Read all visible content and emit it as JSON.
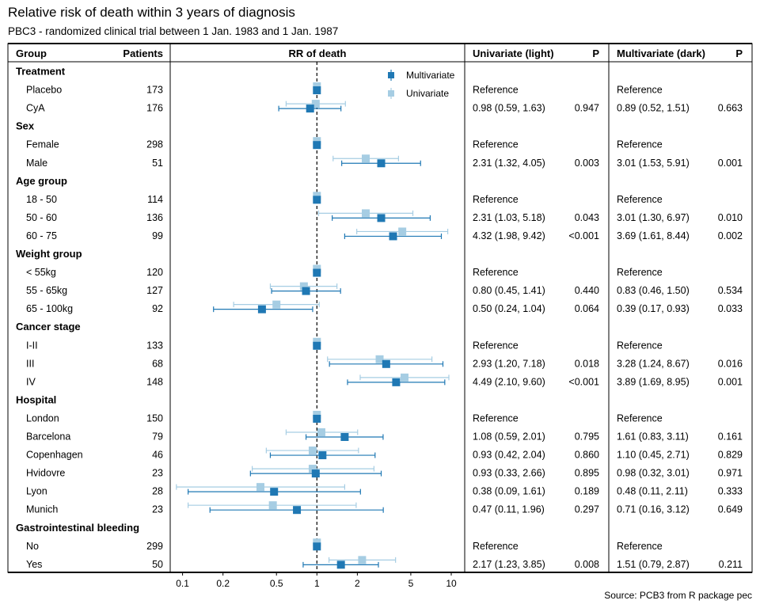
{
  "title": "Relative risk of death within 3 years of diagnosis",
  "subtitle": "PBC3 - randomized clinical trial between 1 Jan. 1983 and 1 Jan. 1987",
  "source": "Source: PCB3 from R package pec",
  "headers": {
    "group": "Group",
    "patients": "Patients",
    "rr": "RR of death",
    "uni": "Univariate (light)",
    "uni_p": "P",
    "multi": "Multivariate (dark)",
    "multi_p": "P"
  },
  "colors": {
    "univariate": "#a6cde3",
    "multivariate": "#1f78b4"
  },
  "chart_data": {
    "type": "forest",
    "x_scale": "log",
    "x_ticks": [
      0.1,
      0.2,
      0.5,
      1,
      2,
      5,
      10
    ],
    "x_tick_labels": [
      "0.1",
      "0.2",
      "0.5",
      "1",
      "2",
      "5",
      "10"
    ],
    "xlim": [
      0.08,
      12
    ],
    "reference_line": 1,
    "legend": {
      "position": "top-right",
      "entries": [
        "Multivariate",
        "Univariate"
      ]
    },
    "groups": [
      {
        "name": "Treatment",
        "rows": [
          {
            "label": "Placebo",
            "n": "173",
            "uni_text": "Reference",
            "uni_p": "",
            "multi_text": "Reference",
            "multi_p": "",
            "uni": [
              1,
              1,
              1
            ],
            "multi": [
              1,
              1,
              1
            ]
          },
          {
            "label": "CyA",
            "n": "176",
            "uni_text": "0.98 (0.59, 1.63)",
            "uni_p": "0.947",
            "multi_text": "0.89 (0.52, 1.51)",
            "multi_p": "0.663",
            "uni": [
              0.98,
              0.59,
              1.63
            ],
            "multi": [
              0.89,
              0.52,
              1.51
            ]
          }
        ]
      },
      {
        "name": "Sex",
        "rows": [
          {
            "label": "Female",
            "n": "298",
            "uni_text": "Reference",
            "uni_p": "",
            "multi_text": "Reference",
            "multi_p": "",
            "uni": [
              1,
              1,
              1
            ],
            "multi": [
              1,
              1,
              1
            ]
          },
          {
            "label": "Male",
            "n": "51",
            "uni_text": "2.31 (1.32, 4.05)",
            "uni_p": "0.003",
            "multi_text": "3.01 (1.53, 5.91)",
            "multi_p": "0.001",
            "uni": [
              2.31,
              1.32,
              4.05
            ],
            "multi": [
              3.01,
              1.53,
              5.91
            ]
          }
        ]
      },
      {
        "name": "Age group",
        "rows": [
          {
            "label": "18 - 50",
            "n": "114",
            "uni_text": "Reference",
            "uni_p": "",
            "multi_text": "Reference",
            "multi_p": "",
            "uni": [
              1,
              1,
              1
            ],
            "multi": [
              1,
              1,
              1
            ]
          },
          {
            "label": "50 - 60",
            "n": "136",
            "uni_text": "2.31 (1.03, 5.18)",
            "uni_p": "0.043",
            "multi_text": "3.01 (1.30, 6.97)",
            "multi_p": "0.010",
            "uni": [
              2.31,
              1.03,
              5.18
            ],
            "multi": [
              3.01,
              1.3,
              6.97
            ]
          },
          {
            "label": "60 - 75",
            "n": "99",
            "uni_text": "4.32 (1.98, 9.42)",
            "uni_p": "<0.001",
            "multi_text": "3.69 (1.61, 8.44)",
            "multi_p": "0.002",
            "uni": [
              4.32,
              1.98,
              9.42
            ],
            "multi": [
              3.69,
              1.61,
              8.44
            ]
          }
        ]
      },
      {
        "name": "Weight group",
        "rows": [
          {
            "label": "< 55kg",
            "n": "120",
            "uni_text": "Reference",
            "uni_p": "",
            "multi_text": "Reference",
            "multi_p": "",
            "uni": [
              1,
              1,
              1
            ],
            "multi": [
              1,
              1,
              1
            ]
          },
          {
            "label": "55 - 65kg",
            "n": "127",
            "uni_text": "0.80 (0.45, 1.41)",
            "uni_p": "0.440",
            "multi_text": "0.83 (0.46, 1.50)",
            "multi_p": "0.534",
            "uni": [
              0.8,
              0.45,
              1.41
            ],
            "multi": [
              0.83,
              0.46,
              1.5
            ]
          },
          {
            "label": "65 - 100kg",
            "n": "92",
            "uni_text": "0.50 (0.24, 1.04)",
            "uni_p": "0.064",
            "multi_text": "0.39 (0.17, 0.93)",
            "multi_p": "0.033",
            "uni": [
              0.5,
              0.24,
              1.04
            ],
            "multi": [
              0.39,
              0.17,
              0.93
            ]
          }
        ]
      },
      {
        "name": "Cancer stage",
        "rows": [
          {
            "label": "I-II",
            "n": "133",
            "uni_text": "Reference",
            "uni_p": "",
            "multi_text": "Reference",
            "multi_p": "",
            "uni": [
              1,
              1,
              1
            ],
            "multi": [
              1,
              1,
              1
            ]
          },
          {
            "label": "III",
            "n": "68",
            "uni_text": "2.93 (1.20, 7.18)",
            "uni_p": "0.018",
            "multi_text": "3.28 (1.24, 8.67)",
            "multi_p": "0.016",
            "uni": [
              2.93,
              1.2,
              7.18
            ],
            "multi": [
              3.28,
              1.24,
              8.67
            ]
          },
          {
            "label": "IV",
            "n": "148",
            "uni_text": "4.49 (2.10, 9.60)",
            "uni_p": "<0.001",
            "multi_text": "3.89 (1.69, 8.95)",
            "multi_p": "0.001",
            "uni": [
              4.49,
              2.1,
              9.6
            ],
            "multi": [
              3.89,
              1.69,
              8.95
            ]
          }
        ]
      },
      {
        "name": "Hospital",
        "rows": [
          {
            "label": "London",
            "n": "150",
            "uni_text": "Reference",
            "uni_p": "",
            "multi_text": "Reference",
            "multi_p": "",
            "uni": [
              1,
              1,
              1
            ],
            "multi": [
              1,
              1,
              1
            ]
          },
          {
            "label": "Barcelona",
            "n": "79",
            "uni_text": "1.08 (0.59, 2.01)",
            "uni_p": "0.795",
            "multi_text": "1.61 (0.83, 3.11)",
            "multi_p": "0.161",
            "uni": [
              1.08,
              0.59,
              2.01
            ],
            "multi": [
              1.61,
              0.83,
              3.11
            ]
          },
          {
            "label": "Copenhagen",
            "n": "46",
            "uni_text": "0.93 (0.42, 2.04)",
            "uni_p": "0.860",
            "multi_text": "1.10 (0.45, 2.71)",
            "multi_p": "0.829",
            "uni": [
              0.93,
              0.42,
              2.04
            ],
            "multi": [
              1.1,
              0.45,
              2.71
            ]
          },
          {
            "label": "Hvidovre",
            "n": "23",
            "uni_text": "0.93 (0.33, 2.66)",
            "uni_p": "0.895",
            "multi_text": "0.98 (0.32, 3.01)",
            "multi_p": "0.971",
            "uni": [
              0.93,
              0.33,
              2.66
            ],
            "multi": [
              0.98,
              0.32,
              3.01
            ]
          },
          {
            "label": "Lyon",
            "n": "28",
            "uni_text": "0.38 (0.09, 1.61)",
            "uni_p": "0.189",
            "multi_text": "0.48 (0.11, 2.11)",
            "multi_p": "0.333",
            "uni": [
              0.38,
              0.09,
              1.61
            ],
            "multi": [
              0.48,
              0.11,
              2.11
            ]
          },
          {
            "label": "Munich",
            "n": "23",
            "uni_text": "0.47 (0.11, 1.96)",
            "uni_p": "0.297",
            "multi_text": "0.71 (0.16, 3.12)",
            "multi_p": "0.649",
            "uni": [
              0.47,
              0.11,
              1.96
            ],
            "multi": [
              0.71,
              0.16,
              3.12
            ]
          }
        ]
      },
      {
        "name": "Gastrointestinal bleeding",
        "rows": [
          {
            "label": "No",
            "n": "299",
            "uni_text": "Reference",
            "uni_p": "",
            "multi_text": "Reference",
            "multi_p": "",
            "uni": [
              1,
              1,
              1
            ],
            "multi": [
              1,
              1,
              1
            ]
          },
          {
            "label": "Yes",
            "n": "50",
            "uni_text": "2.17 (1.23, 3.85)",
            "uni_p": "0.008",
            "multi_text": "1.51 (0.79, 2.87)",
            "multi_p": "0.211",
            "uni": [
              2.17,
              1.23,
              3.85
            ],
            "multi": [
              1.51,
              0.79,
              2.87
            ]
          }
        ]
      }
    ]
  }
}
